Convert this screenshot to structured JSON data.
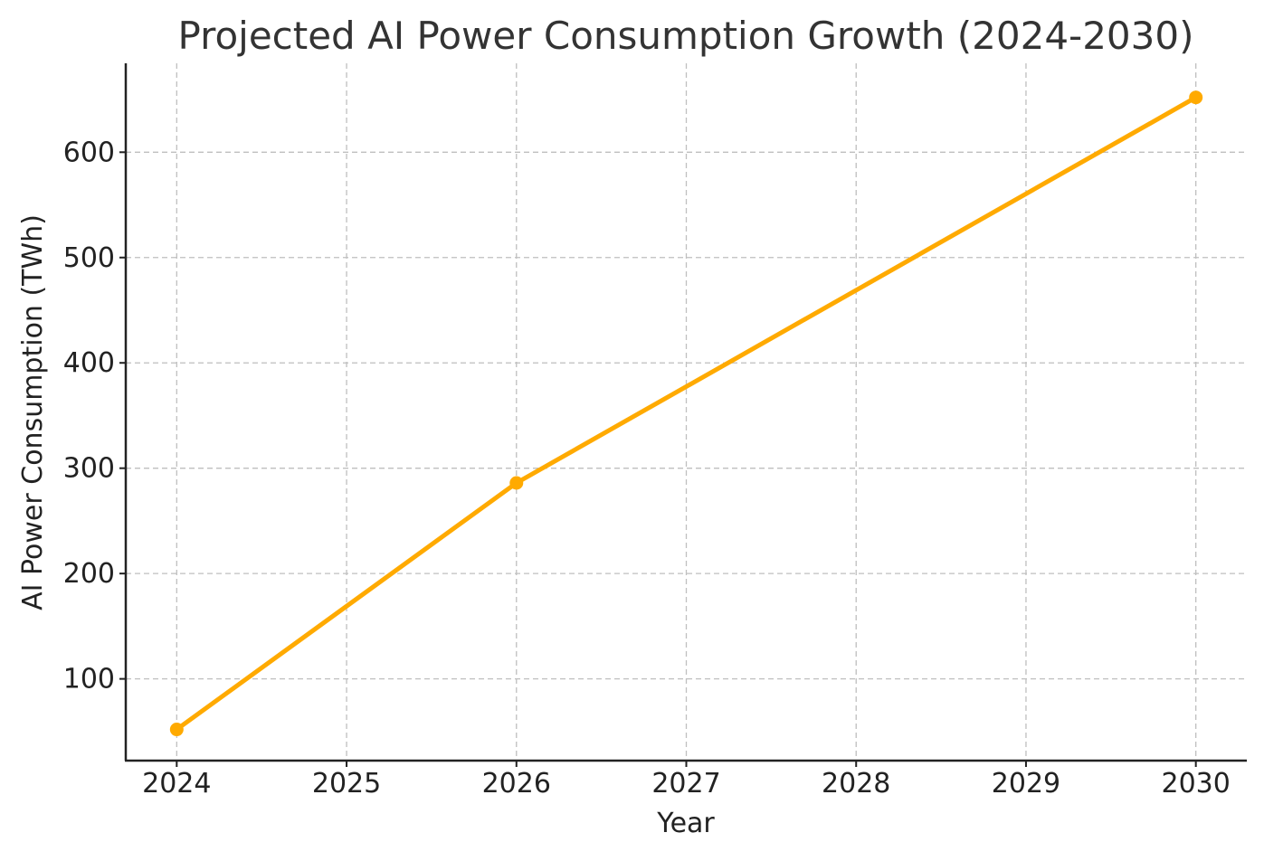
{
  "chart_data": {
    "type": "line",
    "title": "Projected AI Power Consumption Growth (2024-2030)",
    "xlabel": "Year",
    "ylabel": "AI Power Consumption (TWh)",
    "x": [
      2024,
      2026,
      2030
    ],
    "x_ticks": [
      "2024",
      "2025",
      "2026",
      "2027",
      "2028",
      "2029",
      "2030"
    ],
    "x_tick_values": [
      2024,
      2025,
      2026,
      2027,
      2028,
      2029,
      2030
    ],
    "y_ticks": [
      "100",
      "200",
      "300",
      "400",
      "500",
      "600"
    ],
    "y_tick_values": [
      100,
      200,
      300,
      400,
      500,
      600
    ],
    "xlim": [
      2023.7,
      2030.3
    ],
    "ylim": [
      22.4,
      684.4
    ],
    "series": [
      {
        "values": [
          52,
          286,
          652
        ],
        "color": "#FFAA00",
        "marker": "circle"
      }
    ],
    "grid": true,
    "legend": "none"
  }
}
